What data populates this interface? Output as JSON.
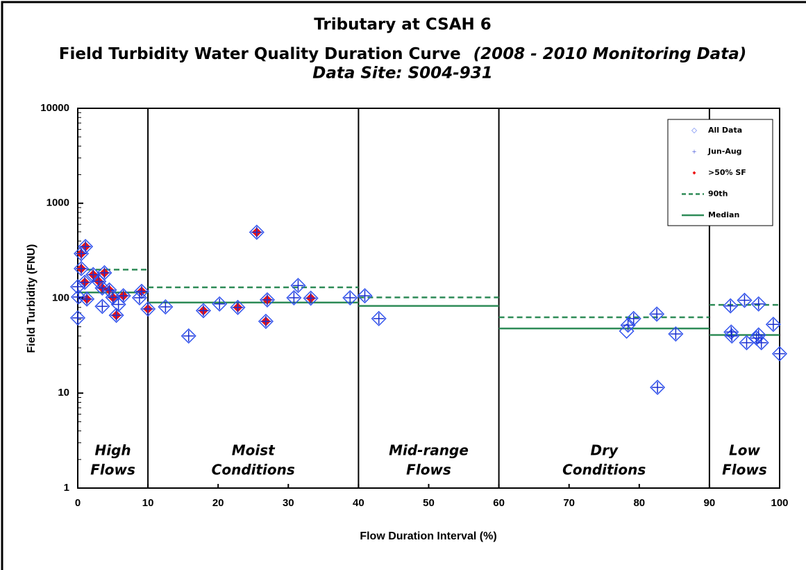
{
  "chart_data": {
    "type": "scatter",
    "title": "Tributary at CSAH 6",
    "subtitle": "Field Turbidity Water Quality Duration Curve",
    "subtitle_note": "(2008 - 2010 Monitoring Data)",
    "site": "Data Site:  S004-931",
    "xlabel": "Flow Duration Interval (%)",
    "ylabel": "Field Turbidity (FNU)",
    "xlim": [
      0,
      100
    ],
    "ylim": [
      1,
      10000
    ],
    "log_y": true,
    "xticks": [
      0,
      10,
      20,
      30,
      40,
      50,
      60,
      70,
      80,
      90,
      100
    ],
    "yticks": [
      1,
      10,
      100,
      1000,
      10000
    ],
    "legend": "upper right",
    "zone_edges": [
      0,
      10,
      40,
      60,
      90,
      100
    ],
    "zones": [
      [
        "High",
        "Flows"
      ],
      [
        "Moist",
        "Conditions"
      ],
      [
        "Mid-range",
        "Flows"
      ],
      [
        "Dry",
        "Conditions"
      ],
      [
        "Low",
        "Flows"
      ]
    ],
    "series": [
      {
        "name": "All Data",
        "marker": "diamond",
        "color": "#3355ee",
        "x": [
          0,
          0,
          0.1,
          0.5,
          0.5,
          1.1,
          1,
          1.3,
          2.2,
          3,
          3.5,
          3.5,
          3.8,
          4.5,
          5,
          5.5,
          5.8,
          6.5,
          8.8,
          9.1,
          10,
          12.5,
          15.8,
          17.9,
          20.2,
          22.8,
          25.5,
          26.8,
          27,
          30.8,
          31.4,
          33.2,
          38.8,
          40.9,
          42.9,
          78.2,
          78.4,
          79.2,
          82.5,
          82.6,
          85.2,
          93,
          93.1,
          93.2,
          95,
          95.3,
          96.7,
          97,
          97,
          97.4,
          99.1,
          100
        ],
        "values": [
          62,
          132,
          103,
          295,
          205,
          350,
          147,
          98,
          177,
          150,
          128,
          82,
          185,
          122,
          102,
          66,
          86,
          106,
          101,
          118,
          77,
          81,
          40,
          74,
          87,
          80,
          495,
          57,
          96,
          101,
          136,
          100,
          101,
          106,
          61,
          45,
          52,
          61,
          68,
          11.5,
          42,
          83,
          44,
          40,
          95,
          34,
          38,
          41,
          87,
          34,
          53,
          26
        ]
      },
      {
        "name": "Jun-Aug",
        "marker": "plus",
        "color": "#1a2fd0",
        "x": [
          0,
          0,
          0.1,
          0.5,
          0.5,
          1.1,
          1,
          1.3,
          2.2,
          3,
          3.5,
          3.5,
          3.8,
          4.5,
          5,
          5.5,
          5.8,
          6.5,
          8.8,
          9.1,
          10,
          12.5,
          15.8,
          17.9,
          20.2,
          22.8,
          25.5,
          26.8,
          27,
          30.8,
          31.4,
          33.2,
          38.8,
          40.9,
          42.9,
          78.4,
          79.2,
          82.5,
          82.6,
          85.2,
          93,
          93.1,
          93.2,
          95,
          95.3,
          96.7,
          97,
          97,
          97.4,
          99.1,
          100
        ],
        "values": [
          62,
          132,
          103,
          295,
          205,
          350,
          147,
          98,
          177,
          150,
          128,
          82,
          185,
          122,
          102,
          66,
          86,
          106,
          101,
          118,
          77,
          81,
          40,
          74,
          87,
          80,
          495,
          57,
          96,
          101,
          136,
          100,
          101,
          106,
          61,
          52,
          61,
          68,
          11.5,
          42,
          83,
          44,
          40,
          95,
          34,
          38,
          41,
          87,
          34,
          53,
          26
        ]
      },
      {
        "name": ">50% SF",
        "marker": "filled-diamond",
        "color": "#ee1111",
        "x": [
          0.5,
          0.5,
          1.1,
          1,
          1.3,
          2.2,
          3,
          3.5,
          3.8,
          4.5,
          5,
          5.5,
          6.5,
          9.1,
          10,
          17.9,
          22.8,
          25.5,
          26.8,
          27,
          33.2
        ],
        "values": [
          295,
          205,
          350,
          147,
          98,
          177,
          150,
          128,
          185,
          122,
          102,
          66,
          106,
          118,
          77,
          74,
          80,
          495,
          57,
          96,
          100
        ]
      },
      {
        "name": "90th",
        "marker": "dashed-step",
        "color": "#2e8b57",
        "values": [
          200,
          130,
          102,
          63,
          85
        ]
      },
      {
        "name": "Median",
        "marker": "step",
        "color": "#2e8b57",
        "values": [
          115,
          90,
          83,
          48,
          41
        ]
      }
    ]
  }
}
